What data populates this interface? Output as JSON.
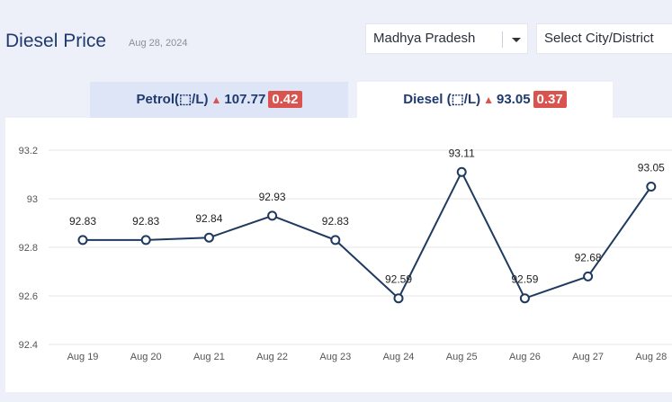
{
  "header": {
    "title": "Diesel Price",
    "date": "Aug 28, 2024"
  },
  "filters": {
    "state": "Madhya Pradesh",
    "city_placeholder": "Select City/District"
  },
  "tabs": [
    {
      "label": "Petrol(⬚/L)",
      "price": "107.77",
      "change": "0.42"
    },
    {
      "label": "Diesel (⬚/L)",
      "price": "93.05",
      "change": "0.37"
    }
  ],
  "colors": {
    "line": "#1f3a5f",
    "change_badge": "#d9534f",
    "active_tab": "#ffffff",
    "inactive_tab": "#dde5f6"
  },
  "chart_data": {
    "type": "line",
    "categories": [
      "Aug 19",
      "Aug 20",
      "Aug 21",
      "Aug 22",
      "Aug 23",
      "Aug 24",
      "Aug 25",
      "Aug 26",
      "Aug 27",
      "Aug 28"
    ],
    "series": [
      {
        "values": [
          92.83,
          92.83,
          92.84,
          92.93,
          92.83,
          92.59,
          93.11,
          92.59,
          92.68,
          93.05
        ]
      }
    ],
    "labels": [
      "92.83",
      "92.83",
      "92.84",
      "92.93",
      "92.83",
      "92.59",
      "93.11",
      "92.59",
      "92.68",
      "93.05"
    ],
    "yticks": [
      "92.4",
      "92.6",
      "92.8",
      "93",
      "93.2"
    ],
    "ylim": [
      92.4,
      93.2
    ],
    "grid": true
  }
}
